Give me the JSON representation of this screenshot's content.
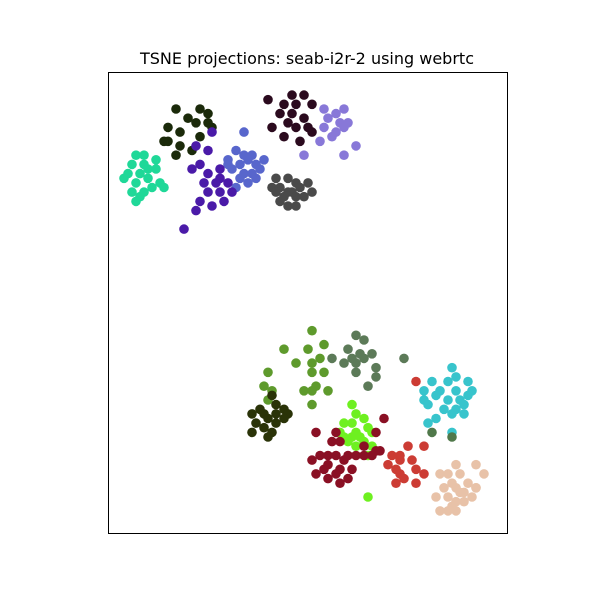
{
  "chart_data": {
    "type": "scatter",
    "title": "TSNE projections: seab-i2r-2 using webrtc",
    "xlabel": "",
    "ylabel": "",
    "xlim": [
      0,
      100
    ],
    "ylim": [
      0,
      100
    ],
    "grid": false,
    "axis_ticks": false,
    "legend": "none",
    "series": [
      {
        "color": "#1b2a0a",
        "points": [
          [
            17,
            92
          ],
          [
            20,
            90
          ],
          [
            23,
            92
          ],
          [
            25,
            91
          ],
          [
            15,
            88
          ],
          [
            18,
            87
          ],
          [
            22,
            89
          ],
          [
            25,
            89
          ],
          [
            26,
            88
          ],
          [
            14,
            85
          ],
          [
            18,
            84
          ],
          [
            23,
            86
          ],
          [
            17,
            82
          ],
          [
            21,
            83
          ],
          [
            15,
            85
          ]
        ]
      },
      {
        "color": "#2b0a1e",
        "points": [
          [
            40,
            94
          ],
          [
            46,
            95
          ],
          [
            49,
            95
          ],
          [
            44,
            93
          ],
          [
            47,
            93
          ],
          [
            51,
            93
          ],
          [
            43,
            91
          ],
          [
            46,
            91
          ],
          [
            49,
            90
          ],
          [
            45,
            89
          ],
          [
            41,
            88
          ],
          [
            47,
            88
          ],
          [
            50,
            88
          ],
          [
            44,
            86
          ],
          [
            48,
            85
          ],
          [
            51,
            87
          ]
        ]
      },
      {
        "color": "#8878d8",
        "points": [
          [
            54,
            92
          ],
          [
            57,
            91
          ],
          [
            59,
            92
          ],
          [
            55,
            90
          ],
          [
            58,
            89
          ],
          [
            60,
            89
          ],
          [
            54,
            88
          ],
          [
            57,
            87
          ],
          [
            59,
            88
          ],
          [
            56,
            86
          ],
          [
            53,
            85
          ],
          [
            62,
            84
          ],
          [
            59,
            82
          ],
          [
            49,
            82
          ]
        ]
      },
      {
        "color": "#5866cc",
        "points": [
          [
            34,
            87
          ],
          [
            32,
            83
          ],
          [
            34,
            82
          ],
          [
            36,
            82
          ],
          [
            30,
            81
          ],
          [
            33,
            80
          ],
          [
            35,
            81
          ],
          [
            37,
            80
          ],
          [
            39,
            81
          ],
          [
            31,
            79
          ],
          [
            34,
            78
          ],
          [
            36,
            78
          ],
          [
            38,
            79
          ],
          [
            33,
            77
          ],
          [
            35,
            76
          ],
          [
            37,
            77
          ],
          [
            32,
            75
          ],
          [
            30,
            80
          ]
        ]
      },
      {
        "color": "#4a1aa8",
        "points": [
          [
            26,
            87
          ],
          [
            22,
            84
          ],
          [
            25,
            83
          ],
          [
            23,
            80
          ],
          [
            21,
            79
          ],
          [
            25,
            78
          ],
          [
            28,
            79
          ],
          [
            24,
            76
          ],
          [
            27,
            76
          ],
          [
            25,
            74
          ],
          [
            28,
            74
          ],
          [
            31,
            74
          ],
          [
            23,
            72
          ],
          [
            26,
            71
          ],
          [
            29,
            72
          ],
          [
            22,
            70
          ],
          [
            19,
            66
          ],
          [
            30,
            76
          ],
          [
            28,
            77
          ]
        ]
      },
      {
        "color": "#1fd898",
        "points": [
          [
            7,
            82
          ],
          [
            9,
            82
          ],
          [
            6,
            80
          ],
          [
            9,
            80
          ],
          [
            12,
            81
          ],
          [
            5,
            78
          ],
          [
            8,
            78
          ],
          [
            10,
            79
          ],
          [
            12,
            79
          ],
          [
            4,
            77
          ],
          [
            7,
            76
          ],
          [
            10,
            77
          ],
          [
            13,
            76
          ],
          [
            6,
            74
          ],
          [
            9,
            74
          ],
          [
            11,
            75
          ],
          [
            14,
            75
          ],
          [
            8,
            73
          ],
          [
            7,
            72
          ]
        ]
      },
      {
        "color": "#4a4a4a",
        "points": [
          [
            42,
            77
          ],
          [
            45,
            77
          ],
          [
            47,
            76
          ],
          [
            50,
            76
          ],
          [
            41,
            75
          ],
          [
            43,
            75
          ],
          [
            46,
            74
          ],
          [
            48,
            75
          ],
          [
            51,
            74
          ],
          [
            44,
            73
          ],
          [
            47,
            73
          ],
          [
            49,
            73
          ],
          [
            43,
            72
          ],
          [
            45,
            71
          ],
          [
            47,
            71
          ],
          [
            42,
            74
          ],
          [
            45,
            74
          ]
        ]
      },
      {
        "color": "#5e9a2c",
        "points": [
          [
            51,
            44
          ],
          [
            54,
            41
          ],
          [
            44,
            40
          ],
          [
            50,
            40
          ],
          [
            53,
            38
          ],
          [
            47,
            37
          ],
          [
            51,
            37
          ],
          [
            40,
            35
          ],
          [
            51,
            35
          ],
          [
            54,
            35
          ],
          [
            39,
            32
          ],
          [
            52,
            32
          ],
          [
            41,
            31
          ],
          [
            49,
            31
          ],
          [
            51,
            31
          ],
          [
            55,
            31
          ],
          [
            40,
            29
          ],
          [
            51,
            28
          ]
        ]
      },
      {
        "color": "#5c7a58",
        "points": [
          [
            62,
            43
          ],
          [
            64,
            42
          ],
          [
            60,
            40
          ],
          [
            63,
            39
          ],
          [
            66,
            39
          ],
          [
            56,
            38
          ],
          [
            61,
            38
          ],
          [
            64,
            38
          ],
          [
            59,
            37
          ],
          [
            62,
            37
          ],
          [
            67,
            36
          ],
          [
            62,
            35
          ],
          [
            67,
            34
          ],
          [
            65,
            32
          ],
          [
            74,
            38
          ]
        ]
      },
      {
        "color": "#2a3308",
        "points": [
          [
            41,
            30
          ],
          [
            38,
            27
          ],
          [
            42,
            28
          ],
          [
            44,
            27
          ],
          [
            36,
            26
          ],
          [
            39,
            26
          ],
          [
            42,
            26
          ],
          [
            45,
            26
          ],
          [
            37,
            24
          ],
          [
            40,
            25
          ],
          [
            42,
            24
          ],
          [
            44,
            25
          ],
          [
            39,
            23
          ],
          [
            41,
            22
          ],
          [
            36,
            22
          ],
          [
            40,
            21
          ]
        ]
      },
      {
        "color": "#38c4cc",
        "points": [
          [
            86,
            36
          ],
          [
            81,
            33
          ],
          [
            85,
            33
          ],
          [
            87,
            34
          ],
          [
            90,
            33
          ],
          [
            79,
            31
          ],
          [
            83,
            31
          ],
          [
            87,
            31
          ],
          [
            91,
            31
          ],
          [
            79,
            29
          ],
          [
            82,
            30
          ],
          [
            85,
            29
          ],
          [
            88,
            29
          ],
          [
            90,
            30
          ],
          [
            80,
            28
          ],
          [
            84,
            27
          ],
          [
            87,
            27
          ],
          [
            89,
            28
          ],
          [
            82,
            25
          ],
          [
            86,
            26
          ],
          [
            89,
            26
          ],
          [
            80,
            24
          ],
          [
            86,
            22
          ]
        ]
      },
      {
        "color": "#6ef020",
        "points": [
          [
            61,
            28
          ],
          [
            62,
            26
          ],
          [
            64,
            25
          ],
          [
            59,
            24
          ],
          [
            61,
            24
          ],
          [
            58,
            22
          ],
          [
            62,
            22
          ],
          [
            65,
            23
          ],
          [
            66,
            22
          ],
          [
            59,
            21
          ],
          [
            61,
            21
          ],
          [
            63,
            21
          ],
          [
            60,
            20
          ],
          [
            62,
            19
          ],
          [
            66,
            19
          ],
          [
            64,
            20
          ],
          [
            65,
            17
          ],
          [
            65,
            8
          ]
        ]
      },
      {
        "color": "#8a1024",
        "points": [
          [
            69,
            25
          ],
          [
            52,
            22
          ],
          [
            57,
            22
          ],
          [
            67,
            22
          ],
          [
            56,
            20
          ],
          [
            58,
            20
          ],
          [
            64,
            19
          ],
          [
            67,
            18
          ],
          [
            68,
            18
          ],
          [
            53,
            17
          ],
          [
            55,
            17
          ],
          [
            57,
            17
          ],
          [
            60,
            17
          ],
          [
            62,
            17
          ],
          [
            64,
            17
          ],
          [
            66,
            17
          ],
          [
            51,
            16
          ],
          [
            55,
            15
          ],
          [
            58,
            14
          ],
          [
            61,
            14
          ],
          [
            54,
            14
          ],
          [
            57,
            13
          ],
          [
            52,
            13
          ],
          [
            55,
            12
          ],
          [
            58,
            11
          ],
          [
            60,
            12
          ],
          [
            59,
            16
          ]
        ]
      },
      {
        "color": "#cc3c34",
        "points": [
          [
            77,
            33
          ],
          [
            75,
            19
          ],
          [
            79,
            19
          ],
          [
            71,
            17
          ],
          [
            73,
            17
          ],
          [
            76,
            16
          ],
          [
            73,
            16
          ],
          [
            70,
            15
          ],
          [
            72,
            14
          ],
          [
            77,
            14
          ],
          [
            73,
            13
          ],
          [
            79,
            13
          ],
          [
            74,
            12
          ],
          [
            72,
            11
          ],
          [
            77,
            11
          ]
        ]
      },
      {
        "color": "#e8c2a8",
        "points": [
          [
            87,
            15
          ],
          [
            92,
            15
          ],
          [
            83,
            13
          ],
          [
            85,
            13
          ],
          [
            88,
            13
          ],
          [
            86,
            11
          ],
          [
            90,
            11
          ],
          [
            92,
            10
          ],
          [
            84,
            10
          ],
          [
            87,
            10
          ],
          [
            89,
            9
          ],
          [
            91,
            8
          ],
          [
            82,
            8
          ],
          [
            85,
            8
          ],
          [
            87,
            7
          ],
          [
            89,
            7
          ],
          [
            83,
            5
          ],
          [
            85,
            5
          ],
          [
            87,
            5
          ],
          [
            92,
            10
          ],
          [
            94,
            13
          ],
          [
            86,
            6
          ],
          [
            88,
            9
          ]
        ]
      },
      {
        "color": "#50784a",
        "points": [
          [
            86,
            21
          ],
          [
            81,
            22
          ]
        ]
      }
    ]
  }
}
